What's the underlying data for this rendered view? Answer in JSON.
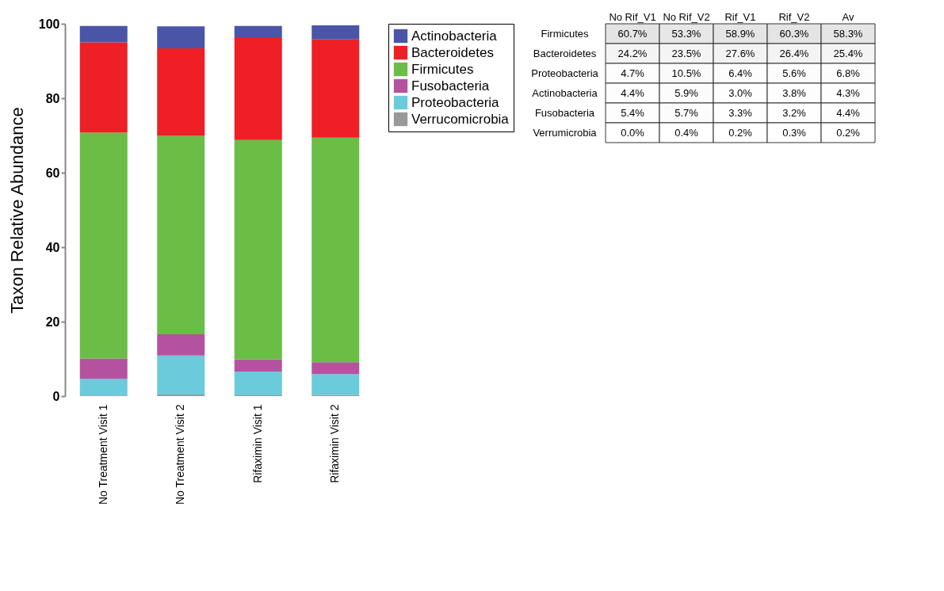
{
  "chart_data": [
    {
      "type": "bar",
      "stacked": true,
      "ylabel": "Taxon Relative Abundance",
      "categories": [
        "No Treatment Visit 1",
        "No Treatment Visit 2",
        "Rifaximin Visit 1",
        "Rifaximin Visit 2"
      ],
      "series": [
        {
          "name": "Verrucomicrobia",
          "color": "#999999",
          "values": [
            0.0,
            0.4,
            0.2,
            0.3
          ]
        },
        {
          "name": "Proteobacteria",
          "color": "#6acbdb",
          "values": [
            4.7,
            10.5,
            6.4,
            5.6
          ]
        },
        {
          "name": "Fusobacteria",
          "color": "#b552a0",
          "values": [
            5.4,
            5.7,
            3.3,
            3.2
          ]
        },
        {
          "name": "Firmicutes",
          "color": "#6abd45",
          "values": [
            60.7,
            53.3,
            58.9,
            60.3
          ]
        },
        {
          "name": "Bacteroidetes",
          "color": "#ee1f25",
          "values": [
            24.2,
            23.5,
            27.6,
            26.4
          ]
        },
        {
          "name": "Actinobacteria",
          "color": "#4a55a8",
          "values": [
            4.4,
            5.9,
            3.0,
            3.8
          ]
        }
      ],
      "ylim": [
        0,
        100
      ],
      "yticks": [
        0,
        20,
        40,
        60,
        80,
        100
      ],
      "grid": false,
      "legend": "top right"
    },
    {
      "type": "heatmap",
      "categories": [
        "No Rif_V1",
        "No Rif_V2",
        "Rif_V1",
        "Rif_V2",
        "Av"
      ],
      "y_categories": [
        "Firmicutes",
        "Bacteroidetes",
        "Proteobacteria",
        "Actinobacteria",
        "Fusobacteria",
        "Verrumicrobia"
      ],
      "cells": [
        [
          60.7,
          53.3,
          58.9,
          60.3,
          58.3
        ],
        [
          24.2,
          23.5,
          27.6,
          26.4,
          25.4
        ],
        [
          4.7,
          10.5,
          6.4,
          5.6,
          6.8
        ],
        [
          4.4,
          5.9,
          3.0,
          3.8,
          4.3
        ],
        [
          5.4,
          5.7,
          3.3,
          3.2,
          4.4
        ],
        [
          0.0,
          0.4,
          0.2,
          0.3,
          0.2
        ]
      ],
      "cell_labels": [
        [
          "60.7%",
          "53.3%",
          "58.9%",
          "60.3%",
          "58.3%"
        ],
        [
          "24.2%",
          "23.5%",
          "27.6%",
          "26.4%",
          "25.4%"
        ],
        [
          "4.7%",
          "10.5%",
          "6.4%",
          "5.6%",
          "6.8%"
        ],
        [
          "4.4%",
          "5.9%",
          "3.0%",
          "3.8%",
          "4.3%"
        ],
        [
          "5.4%",
          "5.7%",
          "3.3%",
          "3.2%",
          "4.4%"
        ],
        [
          "0.0%",
          "0.4%",
          "0.2%",
          "0.3%",
          "0.2%"
        ]
      ]
    }
  ]
}
